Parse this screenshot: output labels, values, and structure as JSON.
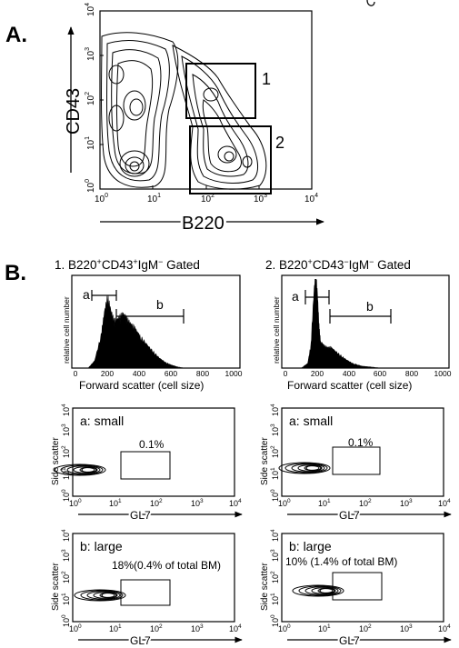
{
  "panel_a": {
    "label": "A.",
    "ylabel": "CD43",
    "xlabel": "B220",
    "gate1": "1",
    "gate2": "2",
    "xticks": [
      "10<sup>0</sup>",
      "10<sup>1</sup>",
      "10<sup>2</sup>",
      "10<sup>3</sup>",
      "10<sup>4</sup>"
    ],
    "yticks": [
      "10<sup>0</sup>",
      "10<sup>1</sup>",
      "10<sup>2</sup>",
      "10<sup>3</sup>",
      "10<sup>4</sup>"
    ]
  },
  "panel_b": {
    "label": "B.",
    "col1_title_parts": [
      "1. B220",
      "+",
      "CD43",
      "+",
      "IgM",
      "−",
      " Gated"
    ],
    "col2_title_parts": [
      "2. B220",
      "+",
      "CD43",
      "−",
      "IgM",
      "−",
      " Gated"
    ],
    "hist_ylabel": "relative cell number",
    "hist_xlabel": "Forward scatter (cell size)",
    "hist_xticks": [
      "0",
      "200",
      "400",
      "600",
      "800",
      "1000"
    ],
    "bracket_a": "a",
    "bracket_b": "b",
    "dot_ylabel": "Side scatter",
    "dot_xlabel": "GL7",
    "small_label": "a: small",
    "large_label": "b: large",
    "col1_small_pct": "0.1%",
    "col2_small_pct": "0.1%",
    "col1_large_pct": "18%(0.4% of total BM)",
    "col2_large_pct": "10% (1.4% of total BM)"
  },
  "chart_data": [
    {
      "type": "heatmap",
      "title": "",
      "xlabel": "B220",
      "ylabel": "CD43",
      "xscale": "log",
      "yscale": "log",
      "xlim": [
        1,
        10000
      ],
      "ylim": [
        1,
        10000
      ],
      "gates": [
        {
          "name": "1",
          "x": [
            40,
            260
          ],
          "y": [
            50,
            1000
          ]
        },
        {
          "name": "2",
          "x": [
            40,
            900
          ],
          "y": [
            1,
            40
          ]
        }
      ]
    },
    {
      "type": "area",
      "title": "1. B220+CD43+IgM- Gated",
      "xlabel": "Forward scatter (cell size)",
      "ylabel": "relative cell number",
      "xlim": [
        0,
        1000
      ],
      "x": [
        80,
        120,
        160,
        180,
        200,
        220,
        240,
        260,
        280,
        300,
        320,
        340,
        360,
        380,
        400,
        440,
        480,
        520,
        560,
        600,
        640,
        680
      ],
      "y": [
        0.0,
        0.08,
        0.35,
        0.6,
        0.75,
        0.62,
        0.5,
        0.52,
        0.55,
        0.58,
        0.52,
        0.48,
        0.44,
        0.4,
        0.34,
        0.26,
        0.18,
        0.11,
        0.06,
        0.03,
        0.01,
        0.0
      ],
      "gates": [
        {
          "name": "a",
          "x": [
            120,
            260
          ]
        },
        {
          "name": "b",
          "x": [
            260,
            660
          ]
        }
      ]
    },
    {
      "type": "area",
      "title": "2. B220+CD43-IgM- Gated",
      "xlabel": "Forward scatter (cell size)",
      "ylabel": "relative cell number",
      "xlim": [
        0,
        1000
      ],
      "x": [
        100,
        140,
        160,
        180,
        190,
        200,
        210,
        220,
        240,
        260,
        280,
        300,
        340,
        380,
        420,
        480,
        540,
        600
      ],
      "y": [
        0.0,
        0.05,
        0.25,
        0.85,
        1.0,
        0.8,
        0.45,
        0.28,
        0.24,
        0.22,
        0.22,
        0.2,
        0.14,
        0.09,
        0.05,
        0.02,
        0.01,
        0.0
      ],
      "gates": [
        {
          "name": "a",
          "x": [
            100,
            260
          ]
        },
        {
          "name": "b",
          "x": [
            270,
            640
          ]
        }
      ]
    },
    {
      "type": "scatter",
      "title": "a: small",
      "xlabel": "GL7",
      "ylabel": "Side scatter",
      "xscale": "log",
      "yscale": "log",
      "gate_value": "0.1%"
    },
    {
      "type": "scatter",
      "title": "a: small",
      "xlabel": "GL7",
      "ylabel": "Side scatter",
      "xscale": "log",
      "yscale": "log",
      "gate_value": "0.1%"
    },
    {
      "type": "scatter",
      "title": "b: large",
      "xlabel": "GL7",
      "ylabel": "Side scatter",
      "xscale": "log",
      "yscale": "log",
      "gate_value": "18%(0.4% of total BM)"
    },
    {
      "type": "scatter",
      "title": "b: large",
      "xlabel": "GL7",
      "ylabel": "Side scatter",
      "xscale": "log",
      "yscale": "log",
      "gate_value": "10% (1.4% of total BM)"
    }
  ]
}
